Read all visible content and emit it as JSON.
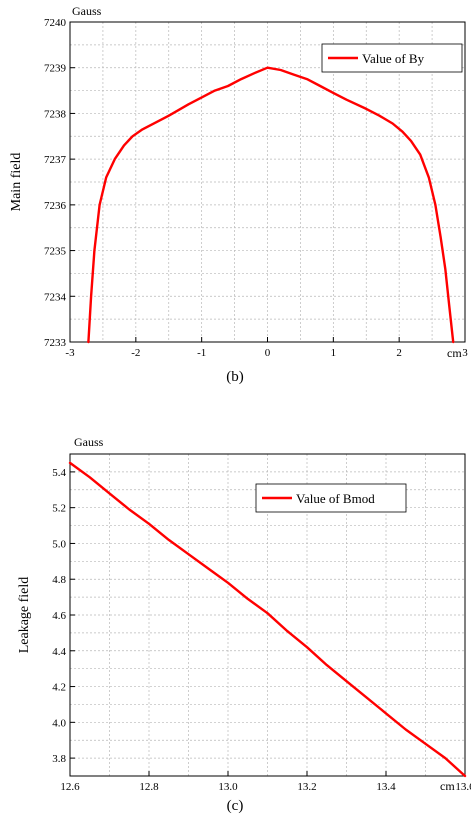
{
  "chart_data": [
    {
      "type": "line",
      "caption": "(b)",
      "ylabel": "Main field",
      "y_unit": "Gauss",
      "x_unit": "cm",
      "xlim": [
        -3,
        3
      ],
      "ylim": [
        7233,
        7240
      ],
      "xticks": [
        -3,
        -2,
        -1,
        0,
        1,
        2,
        3
      ],
      "yticks": [
        7233,
        7234,
        7235,
        7236,
        7237,
        7238,
        7239,
        7240
      ],
      "grid": true,
      "legend_position": "top-right",
      "color": "#ff0000",
      "series": [
        {
          "name": "Value of By",
          "x": [
            -2.72,
            -2.68,
            -2.63,
            -2.55,
            -2.45,
            -2.32,
            -2.18,
            -2.05,
            -1.9,
            -1.7,
            -1.5,
            -1.2,
            -1.0,
            -0.8,
            -0.6,
            -0.4,
            -0.2,
            0.0,
            0.2,
            0.4,
            0.6,
            0.8,
            1.0,
            1.2,
            1.5,
            1.7,
            1.9,
            2.05,
            2.18,
            2.32,
            2.45,
            2.55,
            2.63,
            2.7,
            2.76,
            2.82
          ],
          "y": [
            7233.0,
            7234.0,
            7235.0,
            7236.0,
            7236.6,
            7237.0,
            7237.3,
            7237.5,
            7237.65,
            7237.8,
            7237.95,
            7238.2,
            7238.35,
            7238.5,
            7238.6,
            7238.75,
            7238.88,
            7239.0,
            7238.95,
            7238.85,
            7238.75,
            7238.6,
            7238.45,
            7238.3,
            7238.1,
            7237.95,
            7237.78,
            7237.6,
            7237.4,
            7237.1,
            7236.6,
            7236.0,
            7235.3,
            7234.6,
            7233.8,
            7233.0
          ]
        }
      ]
    },
    {
      "type": "line",
      "caption": "(c)",
      "ylabel": "Leakage field",
      "y_unit": "Gauss",
      "x_unit": "cm",
      "xlim": [
        12.6,
        13.6
      ],
      "ylim": [
        3.7,
        5.5
      ],
      "xticks": [
        12.6,
        12.8,
        13.0,
        13.2,
        13.4,
        13.6
      ],
      "xtick_labels": [
        "12.6",
        "12.8",
        "13.0",
        "13.2",
        "13.4",
        "13.6"
      ],
      "yticks": [
        3.8,
        4.0,
        4.2,
        4.4,
        4.6,
        4.8,
        5.0,
        5.2,
        5.4
      ],
      "ytick_labels": [
        "3.8",
        "4.0",
        "4.2",
        "4.4",
        "4.6",
        "4.8",
        "5.0",
        "5.2",
        "5.4"
      ],
      "grid": true,
      "legend_position": "top-right",
      "color": "#ff0000",
      "series": [
        {
          "name": "Value of Bmod",
          "x": [
            12.6,
            12.65,
            12.7,
            12.75,
            12.8,
            12.85,
            12.9,
            12.95,
            13.0,
            13.05,
            13.1,
            13.15,
            13.2,
            13.25,
            13.3,
            13.35,
            13.4,
            13.45,
            13.5,
            13.55,
            13.6
          ],
          "y": [
            5.45,
            5.37,
            5.28,
            5.19,
            5.11,
            5.02,
            4.94,
            4.86,
            4.78,
            4.69,
            4.61,
            4.51,
            4.42,
            4.32,
            4.23,
            4.14,
            4.05,
            3.96,
            3.88,
            3.8,
            3.7
          ]
        }
      ]
    }
  ]
}
